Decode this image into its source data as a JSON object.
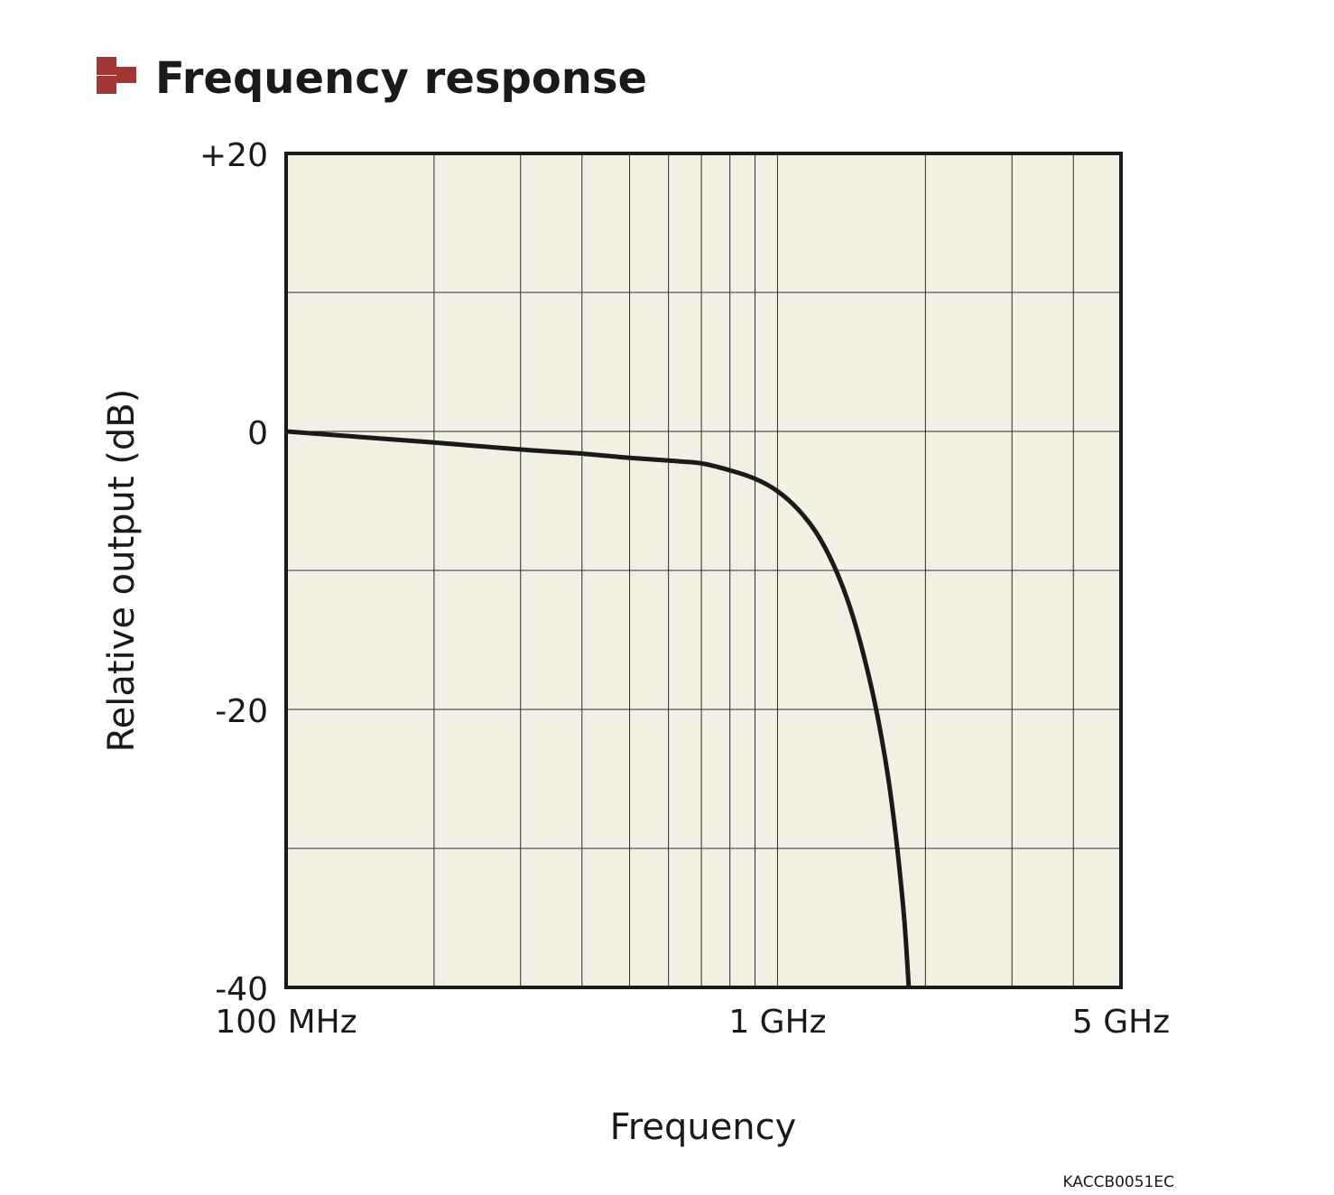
{
  "chart_data": {
    "type": "line",
    "title": "Frequency response",
    "xlabel": "Frequency",
    "ylabel": "Relative output (dB)",
    "x_scale": "log",
    "x_unit": "Hz",
    "xlim": [
      100000000,
      5000000000
    ],
    "ylim": [
      -40,
      20
    ],
    "grid": true,
    "x_ticks": [
      {
        "value": 100000000,
        "label": "100 MHz"
      },
      {
        "value": 1000000000,
        "label": "1 GHz"
      },
      {
        "value": 5000000000,
        "label": "5 GHz"
      }
    ],
    "y_ticks": [
      {
        "value": 20,
        "label": "+20"
      },
      {
        "value": 0,
        "label": "0"
      },
      {
        "value": -20,
        "label": "-20"
      },
      {
        "value": -40,
        "label": "-40"
      }
    ],
    "x_gridlines": [
      200000000,
      300000000,
      400000000,
      500000000,
      600000000,
      700000000,
      800000000,
      900000000,
      1000000000,
      2000000000,
      3000000000,
      4000000000
    ],
    "y_gridlines": [
      10,
      0,
      -10,
      -20,
      -30
    ],
    "series": [
      {
        "name": "",
        "x": [
          100000000,
          200000000,
          300000000,
          400000000,
          500000000,
          600000000,
          700000000,
          800000000,
          900000000,
          1000000000,
          1100000000,
          1200000000,
          1300000000,
          1400000000,
          1500000000,
          1600000000,
          1700000000,
          1800000000,
          1850000000
        ],
        "y": [
          0,
          -0.8,
          -1.3,
          -1.6,
          -1.9,
          -2.1,
          -2.3,
          -2.8,
          -3.4,
          -4.3,
          -5.6,
          -7.3,
          -9.6,
          -12.5,
          -16.2,
          -20.6,
          -26.2,
          -34,
          -40
        ]
      }
    ],
    "footer_code": "KACCB0051EC",
    "colors": {
      "plot_background": "#f2efe3",
      "line": "#1a1a1a",
      "grid": "#2b2b2b",
      "logo_red": "#a33535"
    }
  }
}
